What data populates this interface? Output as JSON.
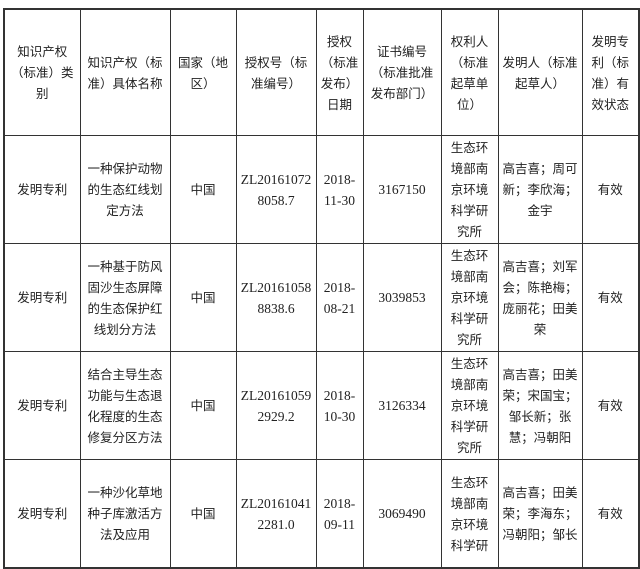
{
  "headers": [
    "知识产权（标准）类别",
    "知识产权（标准）具体名称",
    "国家（地区）",
    "授权号（标准编号）",
    "授权（标准发布）日期",
    "证书编号（标准批准发布部门）",
    "权利人（标准起草单位）",
    "发明人（标准起草人）",
    "发明专利（标准）有效状态"
  ],
  "rows": [
    {
      "type": "发明专利",
      "name": "一种保护动物的生态红线划定方法",
      "country": "中国",
      "number": "ZL201610728058.7",
      "date": "2018-11-30",
      "cert": "3167150",
      "holder": "生态环境部南京环境科学研究所",
      "inventors": "高吉喜；周可新；李欣海；金宇",
      "status": "有效"
    },
    {
      "type": "发明专利",
      "name": "一种基于防风固沙生态屏障的生态保护红线划分方法",
      "country": "中国",
      "number": "ZL201610588838.6",
      "date": "2018-08-21",
      "cert": "3039853",
      "holder": "生态环境部南京环境科学研究所",
      "inventors": "高吉喜；刘军会；陈艳梅；庞丽花；田美荣",
      "status": "有效"
    },
    {
      "type": "发明专利",
      "name": "结合主导生态功能与生态退化程度的生态修复分区方法",
      "country": "中国",
      "number": "ZL201610592929.2",
      "date": "2018-10-30",
      "cert": "3126334",
      "holder": "生态环境部南京环境科学研究所",
      "inventors": "高吉喜；田美荣；宋国宝；邹长新；张慧；冯朝阳",
      "status": "有效"
    },
    {
      "type": "发明专利",
      "name": "一种沙化草地种子库激活方法及应用",
      "country": "中国",
      "number": "ZL201610412281.0",
      "date": "2018-09-11",
      "cert": "3069490",
      "holder": "生态环境部南京环境科学研",
      "inventors": "高吉喜；田美荣；李海东；冯朝阳；邹长",
      "status": "有效"
    }
  ]
}
